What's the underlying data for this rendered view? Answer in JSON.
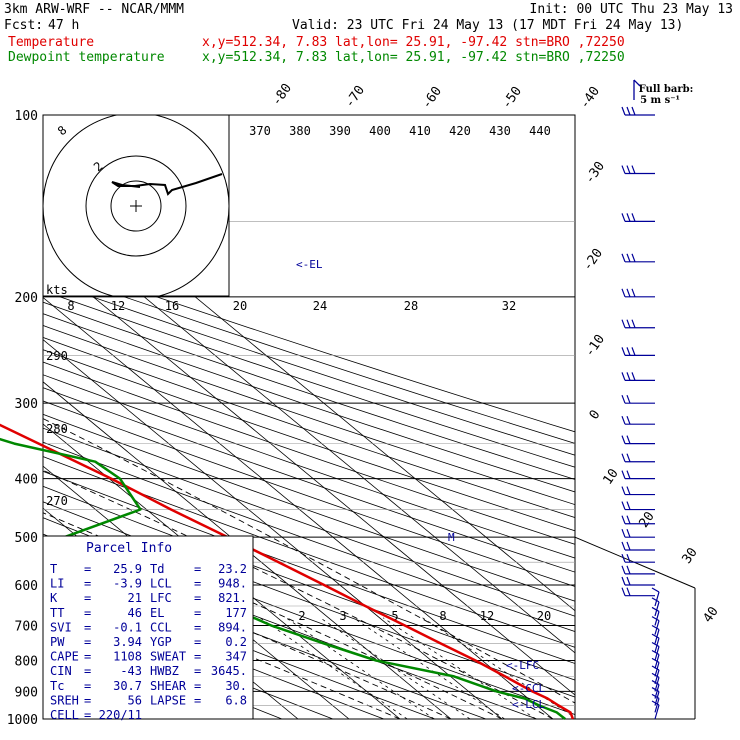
{
  "header": {
    "model": "3km ARW-WRF -- NCAR/MMM",
    "init": "Init: 00 UTC Thu 23 May 13",
    "fcst_label": "Fcst:",
    "fcst_value": "47 h",
    "valid": "Valid: 23 UTC Fri 24 May 13 (17 MDT Fri 24 May 13)",
    "temp_label": "Temperature",
    "temp_info": "x,y=512.34, 7.83  lat,lon= 25.91, -97.42  stn=BRO ,72250",
    "dew_label": "Dewpoint temperature",
    "dew_info": "x,y=512.34, 7.83  lat,lon= 25.91, -97.42  stn=BRO ,72250"
  },
  "barb_key": {
    "title": "Full barb:",
    "unit": "5 m s⁻¹"
  },
  "colors": {
    "temperature": "#e00000",
    "dewpoint": "#008800",
    "text_blue": "#000099",
    "grid": "#000000"
  },
  "chart_data": {
    "type": "line",
    "subtype": "skew-T log-p sounding",
    "pressure_ticks": [
      "100",
      "200",
      "300",
      "400",
      "500",
      "600",
      "700",
      "800",
      "900",
      "1000"
    ],
    "temp_iso_labels": [
      "-80",
      "-70",
      "-60",
      "-50",
      "-40",
      "-30",
      "-20",
      "-10",
      "0",
      "10",
      "20",
      "30",
      "40"
    ],
    "theta_labels": [
      "370",
      "380",
      "390",
      "400",
      "410",
      "420",
      "430",
      "440"
    ],
    "theta_labels_left": [
      "290",
      "280",
      "270"
    ],
    "mixing_ratio_labels": [
      "2",
      "3",
      "5",
      "8",
      "12",
      "20"
    ],
    "hodo_speed_label": "kts",
    "hodo_speed_ticks": [
      "8",
      "12",
      "16",
      "20",
      "24",
      "28",
      "32"
    ],
    "hodo_ring_labels": [
      "8",
      "2"
    ],
    "level_markers": {
      "el": "<-EL",
      "lfc": "<-LFC",
      "ccl": "<-CCL",
      "lcl": "<-LCL",
      "m": "M"
    },
    "series": [
      {
        "name": "Temperature",
        "unit": "C",
        "points": [
          [
            1000,
            23.9
          ],
          [
            975,
            25.0
          ],
          [
            950,
            24.3
          ],
          [
            925,
            23.8
          ],
          [
            900,
            22.5
          ],
          [
            850,
            20.7
          ],
          [
            800,
            18.7
          ],
          [
            750,
            15.9
          ],
          [
            700,
            13.1
          ],
          [
            650,
            10.0
          ],
          [
            600,
            6.9
          ],
          [
            550,
            3.4
          ],
          [
            500,
            -0.6
          ],
          [
            450,
            -5.2
          ],
          [
            400,
            -9.6
          ],
          [
            350,
            -15.5
          ],
          [
            300,
            -22.4
          ],
          [
            250,
            -31.8
          ],
          [
            200,
            -42.9
          ],
          [
            175,
            -49.6
          ],
          [
            160,
            -55.0
          ],
          [
            150,
            -58.4
          ],
          [
            130,
            -61.4
          ],
          [
            115,
            -61.8
          ],
          [
            100,
            -61.7
          ]
        ]
      },
      {
        "name": "Dewpoint temperature",
        "unit": "C",
        "points": [
          [
            1000,
            22.4
          ],
          [
            975,
            22.3
          ],
          [
            950,
            20.5
          ],
          [
            925,
            19.3
          ],
          [
            900,
            15.5
          ],
          [
            850,
            10.7
          ],
          [
            800,
            -0.8
          ],
          [
            750,
            -7.0
          ],
          [
            700,
            -13.1
          ],
          [
            650,
            -17.1
          ],
          [
            600,
            -22.7
          ],
          [
            550,
            -32.3
          ],
          [
            500,
            -32.7
          ],
          [
            450,
            -11.2
          ],
          [
            400,
            -7.9
          ],
          [
            375,
            -8.7
          ],
          [
            350,
            -20.3
          ],
          [
            300,
            -36.7
          ],
          [
            250,
            -54.0
          ],
          [
            225,
            -65.0
          ],
          [
            200,
            -65.3
          ],
          [
            175,
            -68.8
          ],
          [
            150,
            -73.7
          ],
          [
            125,
            -80.0
          ],
          [
            110,
            -84.5
          ],
          [
            100,
            -86.7
          ]
        ]
      }
    ],
    "parcel_info": {
      "title": "Parcel Info",
      "rows": [
        [
          [
            "T",
            "25.9"
          ],
          [
            "Td",
            "23.2"
          ]
        ],
        [
          [
            "LI",
            "-3.9"
          ],
          [
            "LCL",
            "948."
          ]
        ],
        [
          [
            "K",
            "21"
          ],
          [
            "LFC",
            "821."
          ]
        ],
        [
          [
            "TT",
            "46"
          ],
          [
            "EL",
            "177"
          ]
        ],
        [
          [
            "SVI",
            "-0.1"
          ],
          [
            "CCL",
            "894."
          ]
        ],
        [
          [
            "PW",
            "3.94"
          ],
          [
            "YGP",
            "0.2"
          ]
        ],
        [
          [
            "CAPE",
            "1108"
          ],
          [
            "SWEAT",
            "347"
          ]
        ],
        [
          [
            "CIN",
            "-43"
          ],
          [
            "HWBZ",
            "3645."
          ]
        ],
        [
          [
            "Tc",
            "30.7"
          ],
          [
            "SHEAR",
            "30."
          ]
        ],
        [
          [
            "SREH",
            "56"
          ],
          [
            "LAPSE",
            "6.8"
          ]
        ],
        [
          [
            "CELL",
            "220/11"
          ]
        ]
      ]
    }
  }
}
